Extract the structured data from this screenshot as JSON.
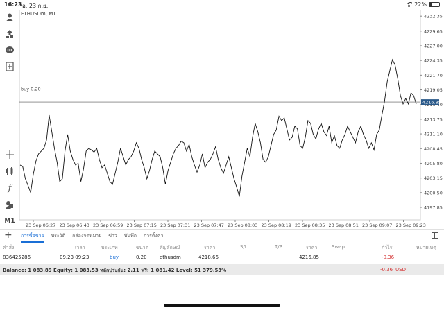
{
  "status_bar": {
    "time": "16:23",
    "date": "อ. 23 ก.ย.",
    "battery": "22%",
    "battery_level": 0.22
  },
  "chart": {
    "title": "ETHUSDm, M1",
    "order_label": "buy 0.20",
    "current_price": "4216.85"
  },
  "chart_data": {
    "type": "line",
    "title": "ETHUSDm, M1",
    "y_ticks": [
      "4232.35",
      "4229.65",
      "4227.00",
      "4224.35",
      "4221.70",
      "4219.05",
      "4216.40",
      "4213.75",
      "4211.10",
      "4208.45",
      "4205.80",
      "4203.15",
      "4200.50",
      "4197.85"
    ],
    "ylim": [
      4195.6,
      4233.5
    ],
    "x_ticks": [
      "23 Sep 06:27",
      "23 Sep 06:43",
      "23 Sep 06:59",
      "23 Sep 07:15",
      "23 Sep 07:31",
      "23 Sep 07:47",
      "23 Sep 08:03",
      "23 Sep 08:19",
      "23 Sep 08:35",
      "23 Sep 08:51",
      "23 Sep 09:07",
      "23 Sep 09:23"
    ],
    "series": [
      {
        "values": [
          4205.5,
          4205.2,
          4203.0,
          4201.8,
          4200.5,
          4203.8,
          4206.2,
          4207.5,
          4208.0,
          4208.5,
          4210.0,
          4214.5,
          4211.5,
          4208.5,
          4206.0,
          4202.5,
          4203.0,
          4208.0,
          4211.0,
          4208.0,
          4206.5,
          4205.5,
          4205.8,
          4202.5,
          4204.8,
          4208.0,
          4208.5,
          4208.2,
          4207.8,
          4208.5,
          4206.5,
          4205.0,
          4205.5,
          4204.0,
          4202.5,
          4202.0,
          4204.0,
          4206.0,
          4208.5,
          4207.0,
          4205.5,
          4206.5,
          4207.0,
          4208.0,
          4209.5,
          4208.5,
          4206.5,
          4205.0,
          4203.0,
          4204.5,
          4206.5,
          4208.0,
          4207.5,
          4207.0,
          4205.0,
          4202.0,
          4204.5,
          4206.0,
          4207.5,
          4208.5,
          4209.0,
          4209.8,
          4209.5,
          4208.0,
          4209.2,
          4207.0,
          4205.5,
          4204.2,
          4205.5,
          4207.5,
          4205.0,
          4206.0,
          4206.5,
          4207.5,
          4208.8,
          4206.5,
          4205.0,
          4204.0,
          4205.5,
          4207.0,
          4205.0,
          4203.0,
          4201.5,
          4199.8,
          4203.5,
          4206.0,
          4208.5,
          4207.0,
          4210.5,
          4213.0,
          4211.5,
          4209.5,
          4206.5,
          4206.0,
          4207.0,
          4209.0,
          4211.0,
          4211.8,
          4214.3,
          4213.5,
          4214.0,
          4212.0,
          4210.0,
          4210.5,
          4212.5,
          4212.0,
          4209.0,
          4208.5,
          4210.5,
          4213.5,
          4213.0,
          4211.0,
          4210.2,
          4212.0,
          4213.0,
          4211.5,
          4210.8,
          4212.5,
          4209.5,
          4210.8,
          4209.0,
          4208.5,
          4210.0,
          4211.0,
          4212.5,
          4211.5,
          4210.5,
          4209.5,
          4211.5,
          4212.5,
          4211.0,
          4210.0,
          4208.5,
          4209.5,
          4208.2,
          4211.0,
          4211.8,
          4214.5,
          4217.0,
          4220.5,
          4222.5,
          4224.5,
          4223.5,
          4221.0,
          4218.0,
          4216.5,
          4217.5,
          4216.5,
          4218.5,
          4218.0,
          4216.5
        ]
      }
    ]
  },
  "tabs": [
    "การซื้อขาย",
    "ประวัติ",
    "กล่องจดหมาย",
    "ข่าว",
    "บันทึก",
    "การตั้งค่า"
  ],
  "table": {
    "headers": [
      "คำสั่ง",
      "เวลา",
      "ประเภท",
      "ขนาด",
      "สัญลักษณ์",
      "ราคา",
      "S/L",
      "T/P",
      "ราคา",
      "Swap",
      "กำไร",
      "หมายเหตุ"
    ],
    "row": {
      "order": "836425286",
      "time": "09.23 09:23",
      "type": "buy",
      "size": "0.20",
      "symbol": "ethusdm",
      "open_price": "4218.66",
      "sl": "",
      "tp": "",
      "price": "4216.85",
      "swap": "",
      "profit": "-0.36",
      "comment": ""
    }
  },
  "balance": {
    "text": "Balance: 1 083.89 Equity: 1 083.53 หลักประกัน: 2.11 ฟรี: 1 081.42 Level: 51 379.53%",
    "value": "-0.36",
    "currency": "USD"
  },
  "colors": {
    "accent": "#1a6fd6",
    "loss": "#d32f2f",
    "price_tag": "#2b5a8a"
  },
  "icons": [
    "accounts-icon",
    "quotes-icon",
    "chat-icon",
    "new-order-icon",
    "crosshair-icon",
    "chart-type-icon",
    "indicators-icon",
    "objects-icon",
    "timeframe"
  ]
}
